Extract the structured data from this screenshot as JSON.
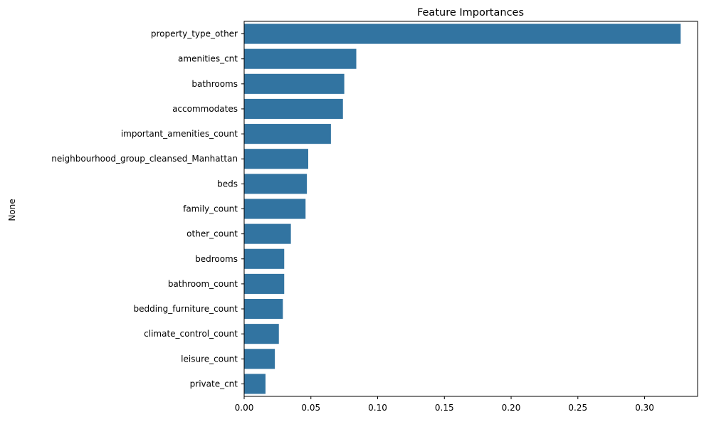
{
  "chart_data": {
    "type": "bar",
    "orientation": "horizontal",
    "title": "Feature Importances",
    "xlabel": "",
    "ylabel": "None",
    "xlim": [
      0,
      0.3397
    ],
    "xticks": [
      0.0,
      0.05,
      0.1,
      0.15,
      0.2,
      0.25,
      0.3
    ],
    "xtick_labels": [
      "0.00",
      "0.05",
      "0.10",
      "0.15",
      "0.20",
      "0.25",
      "0.30"
    ],
    "grid": false,
    "bar_color": "#3274a1",
    "categories": [
      "property_type_other",
      "amenities_cnt",
      "bathrooms",
      "accommodates",
      "important_amenities_count",
      "neighbourhood_group_cleansed_Manhattan",
      "beds",
      "family_count",
      "other_count",
      "bedrooms",
      "bathroom_count",
      "bedding_furniture_count",
      "climate_control_count",
      "leisure_count",
      "private_cnt"
    ],
    "values": [
      0.327,
      0.084,
      0.075,
      0.074,
      0.065,
      0.048,
      0.047,
      0.046,
      0.035,
      0.03,
      0.03,
      0.029,
      0.026,
      0.023,
      0.016
    ]
  }
}
